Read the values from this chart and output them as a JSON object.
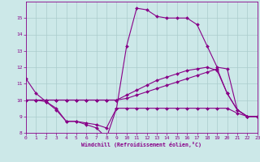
{
  "xlabel": "Windchill (Refroidissement éolien,°C)",
  "xlim": [
    0,
    23
  ],
  "ylim": [
    8,
    16
  ],
  "yticks": [
    8,
    9,
    10,
    11,
    12,
    13,
    14,
    15
  ],
  "xticks": [
    0,
    1,
    2,
    3,
    4,
    5,
    6,
    7,
    8,
    9,
    10,
    11,
    12,
    13,
    14,
    15,
    16,
    17,
    18,
    19,
    20,
    21,
    22,
    23
  ],
  "bg_color": "#cce8e8",
  "grid_color": "#aacccc",
  "line_color": "#880088",
  "line1": {
    "x": [
      0,
      1,
      2,
      3,
      4,
      5,
      6,
      7,
      8,
      9,
      10,
      11,
      12,
      13,
      14,
      15,
      16,
      17,
      18,
      19,
      20,
      21,
      22,
      23
    ],
    "y": [
      11.3,
      10.4,
      9.9,
      9.4,
      8.7,
      8.7,
      8.5,
      8.3,
      7.7,
      9.5,
      13.3,
      15.6,
      15.5,
      15.1,
      15.0,
      15.0,
      15.0,
      14.6,
      13.3,
      12.0,
      11.9,
      9.4,
      9.0,
      9.0
    ]
  },
  "line2": {
    "x": [
      0,
      1,
      2,
      3,
      4,
      5,
      6,
      7,
      8,
      9,
      10,
      11,
      12,
      13,
      14,
      15,
      16,
      17,
      18,
      19,
      20,
      21,
      22,
      23
    ],
    "y": [
      10.0,
      10.0,
      10.0,
      10.0,
      10.0,
      10.0,
      10.0,
      10.0,
      10.0,
      10.0,
      10.3,
      10.6,
      10.9,
      11.2,
      11.4,
      11.6,
      11.8,
      11.9,
      12.0,
      11.8,
      10.4,
      9.4,
      9.0,
      9.0
    ]
  },
  "line3": {
    "x": [
      0,
      1,
      2,
      3,
      4,
      5,
      6,
      7,
      8,
      9,
      10,
      11,
      12,
      13,
      14,
      15,
      16,
      17,
      18,
      19,
      20,
      21,
      22,
      23
    ],
    "y": [
      10.0,
      10.0,
      9.9,
      9.5,
      8.7,
      8.7,
      8.6,
      8.5,
      8.3,
      9.5,
      9.5,
      9.5,
      9.5,
      9.5,
      9.5,
      9.5,
      9.5,
      9.5,
      9.5,
      9.5,
      9.5,
      9.2,
      9.0,
      9.0
    ]
  },
  "line4": {
    "x": [
      0,
      1,
      2,
      3,
      4,
      5,
      6,
      7,
      8,
      9,
      10,
      11,
      12,
      13,
      14,
      15,
      16,
      17,
      18,
      19,
      20,
      21,
      22,
      23
    ],
    "y": [
      10.0,
      10.0,
      10.0,
      10.0,
      10.0,
      10.0,
      10.0,
      10.0,
      10.0,
      10.0,
      10.1,
      10.3,
      10.5,
      10.7,
      10.9,
      11.1,
      11.3,
      11.5,
      11.7,
      11.9,
      10.4,
      9.4,
      9.0,
      9.0
    ]
  }
}
